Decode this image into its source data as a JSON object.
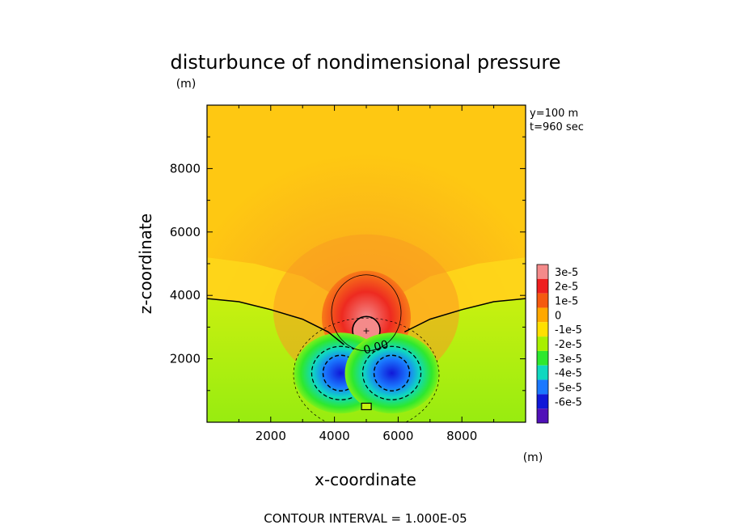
{
  "chart_data": {
    "type": "heatmap",
    "title": "disturbunce of nondimensional pressure",
    "xlabel": "x-coordinate",
    "ylabel": "z-coordinate",
    "x_unit": "(m)",
    "y_unit": "(m)",
    "xlim": [
      0,
      10000
    ],
    "ylim": [
      0,
      10000
    ],
    "xticks": [
      "2000",
      "4000",
      "6000",
      "8000"
    ],
    "yticks": [
      "2000",
      "4000",
      "6000",
      "8000"
    ],
    "info": [
      "y=100 m",
      "t=960 sec"
    ],
    "contour_interval": "CONTOUR INTERVAL = 1.000E-05",
    "contour_label": "0.00",
    "colorbar": {
      "labels": [
        "3e-5",
        "2e-5",
        "1e-5",
        "0",
        "-1e-5",
        "-2e-5",
        "-3e-5",
        "-4e-5",
        "-5e-5",
        "-6e-5"
      ],
      "colors": [
        "#f48a8a",
        "#ee1e1e",
        "#f55a10",
        "#ffa800",
        "#ffe000",
        "#a8f000",
        "#2ee82e",
        "#10d8c0",
        "#1a78ff",
        "#1018d8",
        "#5010b8"
      ]
    },
    "features": [
      {
        "type": "positive-maximum",
        "x": 5000,
        "z": 2900,
        "peak": 3e-05,
        "label": "+"
      },
      {
        "type": "negative-minimum",
        "x": 4200,
        "z": 1550,
        "peak": -6e-05
      },
      {
        "type": "negative-minimum",
        "x": 5800,
        "z": 1550,
        "peak": -6e-05
      },
      {
        "type": "zero-contour",
        "description": "approx z=3900 at x=0 and x=10000, dipping to z=2200 at x=5000"
      }
    ]
  }
}
